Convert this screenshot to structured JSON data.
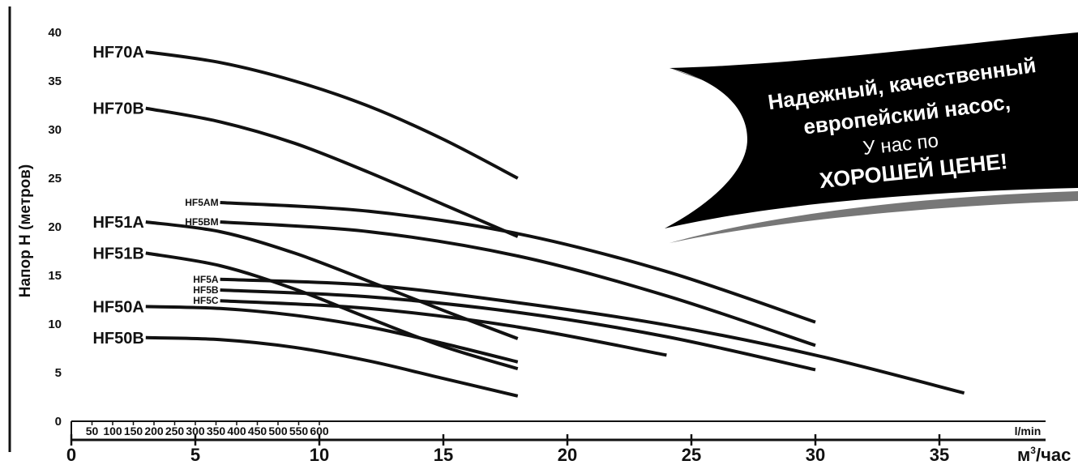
{
  "chart_data": {
    "type": "line",
    "title": "",
    "ylabel": "Напор Н (метров)",
    "ylim": [
      0,
      40
    ],
    "y_ticks": [
      "0",
      "5",
      "10",
      "15",
      "20",
      "25",
      "30",
      "35",
      "40"
    ],
    "x_primary": {
      "unit_label": "м³/час",
      "unit_base": "м",
      "unit_sup": "3",
      "unit_rest": "/час",
      "range": [
        0,
        38
      ],
      "ticks": [
        "0",
        "5",
        "10",
        "15",
        "20",
        "25",
        "30",
        "35"
      ]
    },
    "x_secondary": {
      "unit_label": "l/min",
      "ticks": [
        "50",
        "100",
        "150",
        "200",
        "250",
        "300",
        "350",
        "400",
        "450",
        "500",
        "550",
        "600"
      ]
    },
    "series": [
      {
        "name": "HF70A",
        "size": "large",
        "x": [
          3,
          6,
          9,
          12,
          15,
          18
        ],
        "y": [
          38,
          36.9,
          35,
          32.4,
          29,
          25
        ]
      },
      {
        "name": "HF70B",
        "size": "large",
        "x": [
          3,
          6,
          9,
          12,
          15,
          18
        ],
        "y": [
          32.2,
          30.8,
          28.6,
          25.6,
          22.3,
          19
        ]
      },
      {
        "name": "HF5AM",
        "size": "small",
        "x": [
          6,
          12,
          18,
          24,
          30
        ],
        "y": [
          22.5,
          21.6,
          19.3,
          15.4,
          10.2
        ]
      },
      {
        "name": "HF5BM",
        "size": "small",
        "x": [
          6,
          12,
          18,
          24,
          30
        ],
        "y": [
          20.5,
          19.5,
          17,
          12.9,
          7.8
        ]
      },
      {
        "name": "HF51A",
        "size": "large",
        "x": [
          3,
          6,
          9,
          12,
          15,
          18
        ],
        "y": [
          20.5,
          19.5,
          17.3,
          14.4,
          11.4,
          8.5
        ]
      },
      {
        "name": "HF51B",
        "size": "large",
        "x": [
          3,
          6,
          9,
          12,
          15,
          18
        ],
        "y": [
          17.3,
          16,
          13.6,
          10.6,
          7.7,
          5.4
        ]
      },
      {
        "name": "HF5A",
        "size": "small",
        "x": [
          6,
          12,
          18,
          24,
          30,
          36
        ],
        "y": [
          14.6,
          14,
          12.2,
          9.9,
          6.8,
          2.9
        ]
      },
      {
        "name": "HF5B",
        "size": "small",
        "x": [
          6,
          12,
          18,
          24,
          30
        ],
        "y": [
          13.5,
          12.8,
          11.2,
          8.7,
          5.3
        ]
      },
      {
        "name": "HF5C",
        "size": "small",
        "x": [
          6,
          12,
          18,
          24
        ],
        "y": [
          12.4,
          11.6,
          9.7,
          6.8
        ]
      },
      {
        "name": "HF50A",
        "size": "large",
        "x": [
          3,
          6,
          9,
          12,
          15,
          18
        ],
        "y": [
          11.8,
          11.6,
          10.9,
          9.7,
          8,
          6.1
        ]
      },
      {
        "name": "HF50B",
        "size": "large",
        "x": [
          3,
          6,
          9,
          12,
          15,
          18
        ],
        "y": [
          8.6,
          8.4,
          7.6,
          6.2,
          4.4,
          2.6
        ]
      }
    ]
  },
  "banner": {
    "line1": "Надежный, качественный",
    "line2": "европейский насос,",
    "line3": "У нас по",
    "line4": "ХОРОШЕЙ ЦЕНЕ!"
  }
}
